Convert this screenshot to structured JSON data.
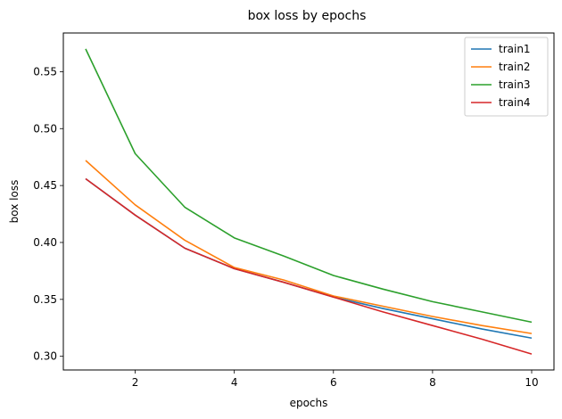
{
  "chart_data": {
    "type": "line",
    "title": "box loss by epochs",
    "xlabel": "epochs",
    "ylabel": "box loss",
    "x": [
      1,
      2,
      3,
      4,
      5,
      6,
      7,
      8,
      9,
      10
    ],
    "xlim": [
      0.55,
      10.45
    ],
    "ylim": [
      0.288,
      0.584
    ],
    "xticks": [
      2,
      4,
      6,
      8,
      10
    ],
    "xtick_labels": [
      "2",
      "4",
      "6",
      "8",
      "10"
    ],
    "yticks": [
      0.3,
      0.35,
      0.4,
      0.45,
      0.5,
      0.55
    ],
    "ytick_labels": [
      "0.30",
      "0.35",
      "0.40",
      "0.45",
      "0.50",
      "0.55"
    ],
    "grid": false,
    "legend_position": "top-right",
    "series": [
      {
        "name": "train1",
        "color": "#1f77b4",
        "values": [
          0.456,
          0.424,
          0.395,
          0.377,
          0.365,
          0.352,
          0.342,
          0.333,
          0.324,
          0.316
        ]
      },
      {
        "name": "train2",
        "color": "#ff7f0e",
        "values": [
          0.472,
          0.433,
          0.402,
          0.378,
          0.367,
          0.353,
          0.344,
          0.335,
          0.327,
          0.32
        ]
      },
      {
        "name": "train3",
        "color": "#2ca02c",
        "values": [
          0.57,
          0.478,
          0.431,
          0.404,
          0.388,
          0.371,
          0.359,
          0.348,
          0.339,
          0.33
        ]
      },
      {
        "name": "train4",
        "color": "#d62728",
        "values": [
          0.456,
          0.424,
          0.395,
          0.377,
          0.365,
          0.352,
          0.339,
          0.327,
          0.315,
          0.302
        ]
      }
    ]
  }
}
